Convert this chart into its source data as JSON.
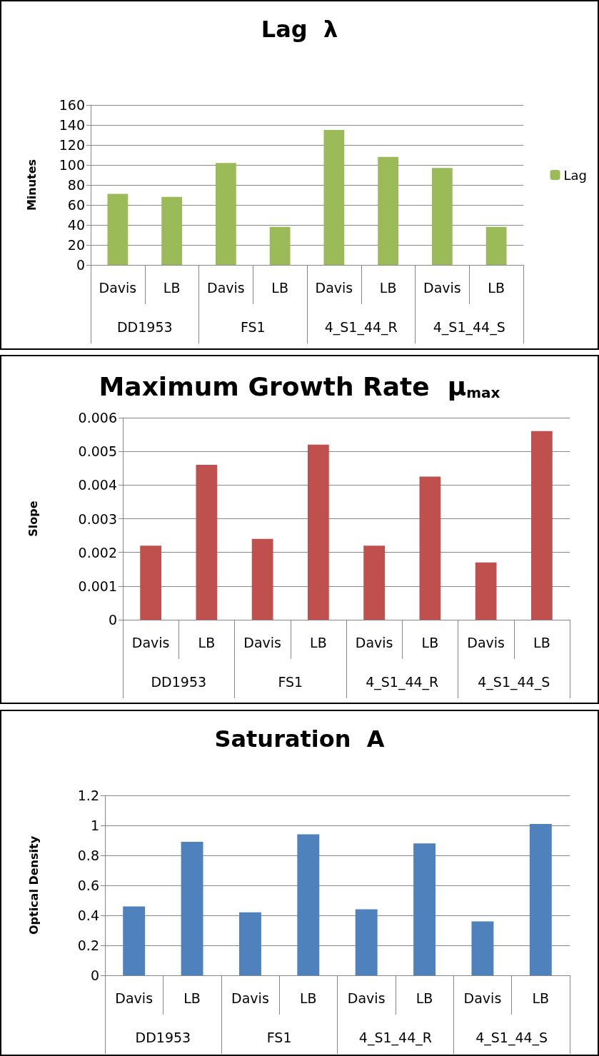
{
  "chart_data": [
    {
      "type": "bar",
      "title": "Lag  λ",
      "ylabel": "Minutes",
      "categories": [
        "Davis",
        "LB",
        "Davis",
        "LB",
        "Davis",
        "LB",
        "Davis",
        "LB"
      ],
      "annotations": [
        "DD1953",
        "FS1",
        "4_S1_44_R",
        "4_S1_44_S"
      ],
      "series": [
        {
          "name": "Lag",
          "color": "#9bbb59",
          "values": [
            71,
            68,
            102,
            38,
            135,
            108,
            97,
            38
          ]
        }
      ],
      "ylim": [
        0,
        160
      ],
      "yticks": [
        0,
        20,
        40,
        60,
        80,
        100,
        120,
        140,
        160
      ],
      "grid": "y",
      "legend": "right"
    },
    {
      "type": "bar",
      "title": "Maximum Growth Rate  μ$_{max}$",
      "ylabel": "Slope",
      "categories": [
        "Davis",
        "LB",
        "Davis",
        "LB",
        "Davis",
        "LB",
        "Davis",
        "LB"
      ],
      "annotations": [
        "DD1953",
        "FS1",
        "4_S1_44_R",
        "4_S1_44_S"
      ],
      "series": [
        {
          "color": "#c0504d",
          "values": [
            0.0022,
            0.0046,
            0.0024,
            0.0052,
            0.0022,
            0.00425,
            0.0017,
            0.0056
          ]
        }
      ],
      "ylim": [
        0,
        0.006
      ],
      "yticks": [
        0,
        0.001,
        0.002,
        0.003,
        0.004,
        0.005,
        0.006
      ],
      "grid": "y"
    },
    {
      "type": "bar",
      "title": "Saturation  A",
      "ylabel": "Optical Density",
      "categories": [
        "Davis",
        "LB",
        "Davis",
        "LB",
        "Davis",
        "LB",
        "Davis",
        "LB"
      ],
      "annotations": [
        "DD1953",
        "FS1",
        "4_S1_44_R",
        "4_S1_44_S"
      ],
      "series": [
        {
          "color": "#4f81bd",
          "values": [
            0.46,
            0.89,
            0.42,
            0.94,
            0.44,
            0.88,
            0.36,
            1.01
          ]
        }
      ],
      "ylim": [
        0,
        1.2
      ],
      "yticks": [
        0,
        0.2,
        0.4,
        0.6,
        0.8,
        1,
        1.2
      ],
      "grid": "y"
    }
  ]
}
